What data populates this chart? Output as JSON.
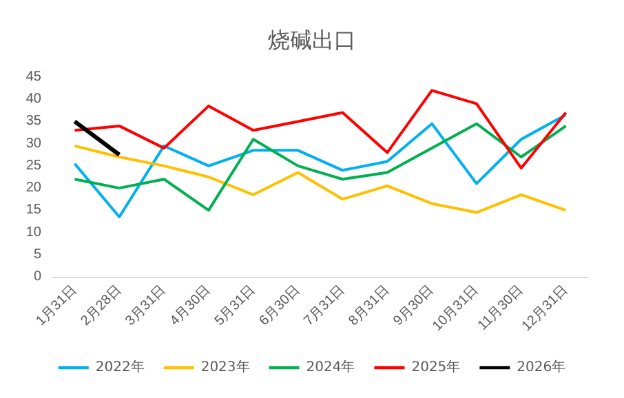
{
  "chart_data": {
    "type": "line",
    "title": "烧碱出口",
    "categories": [
      "1月31日",
      "2月28日",
      "3月31日",
      "4月30日",
      "5月31日",
      "6月30日",
      "7月31日",
      "8月31日",
      "9月30日",
      "10月31日",
      "11月30日",
      "12月31日"
    ],
    "series": [
      {
        "name": "2022年",
        "color": "#00b0f0",
        "values": [
          25.5,
          13.5,
          29.5,
          25,
          28.5,
          28.5,
          24,
          26,
          34.5,
          21,
          31,
          36.5
        ]
      },
      {
        "name": "2023年",
        "color": "#ffc000",
        "values": [
          29.5,
          27,
          25,
          22.5,
          18.5,
          23.5,
          17.5,
          20.5,
          16.5,
          14.5,
          18.5,
          15
        ]
      },
      {
        "name": "2024年",
        "color": "#00b050",
        "values": [
          22,
          20,
          22,
          15,
          31,
          25,
          22,
          23.5,
          29,
          34.5,
          27,
          34
        ]
      },
      {
        "name": "2025年",
        "color": "#ff0000",
        "values": [
          33,
          34,
          29,
          38.5,
          33,
          35,
          37,
          28,
          42,
          39,
          24.5,
          37
        ]
      },
      {
        "name": "2026年",
        "color": "#000000",
        "values": [
          35,
          27.5,
          null,
          null,
          null,
          null,
          null,
          null,
          null,
          null,
          null,
          null
        ]
      }
    ],
    "ylim": [
      0,
      45
    ],
    "yticks": [
      0,
      5,
      10,
      15,
      20,
      25,
      30,
      35,
      40,
      45
    ],
    "grid": false,
    "legend": "bottom",
    "marker": "none",
    "line_style": "solid"
  }
}
